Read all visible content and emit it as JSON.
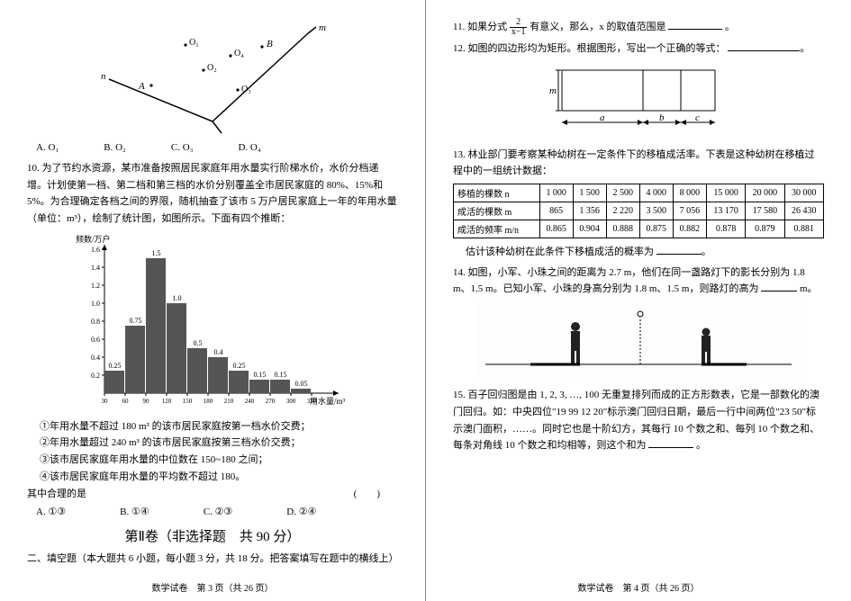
{
  "left": {
    "geom": {
      "labels": {
        "n": "n",
        "m": "m",
        "A": "A",
        "B": "B",
        "O1": "O₁",
        "O2": "O₂",
        "O3": "O₃",
        "O4": "O₄"
      },
      "line_color": "#000"
    },
    "q9_opts": {
      "A": "A. O₁",
      "B": "B. O₂",
      "C": "C. O₃",
      "D": "D. O₄"
    },
    "q10": {
      "num": "10.",
      "text1": "为了节约水资源，某市准备按照居民家庭年用水量实行阶梯水价，水价分档递增。计划使第一档、第二档和第三档的水价分别覆盖全市居民家庭的 80%、15%和 5%。为合理确定各档之间的界限，随机抽查了该市 5 万户居民家庭上一年的年用水量（单位：m³），绘制了统计图，如图所示。下面有四个推断："
    },
    "chart": {
      "ylabel": "频数/万户",
      "xlabel": "用水量/m³",
      "x_ticks": [
        "30",
        "60",
        "90",
        "120",
        "150",
        "180",
        "210",
        "240",
        "270",
        "300",
        "330"
      ],
      "y_ticks": [
        "0.2",
        "0.4",
        "0.6",
        "0.8",
        "1.0",
        "1.2",
        "1.4",
        "1.6"
      ],
      "bars": [
        {
          "x": 0,
          "h": 0.25,
          "label": "0.25"
        },
        {
          "x": 1,
          "h": 0.75,
          "label": "0.75"
        },
        {
          "x": 2,
          "h": 1.5,
          "label": "1.5"
        },
        {
          "x": 3,
          "h": 1.0,
          "label": "1.0"
        },
        {
          "x": 4,
          "h": 0.5,
          "label": "0.5"
        },
        {
          "x": 5,
          "h": 0.4,
          "label": "0.4"
        },
        {
          "x": 6,
          "h": 0.25,
          "label": "0.25"
        },
        {
          "x": 7,
          "h": 0.15,
          "label": "0.15"
        },
        {
          "x": 8,
          "h": 0.15,
          "label": "0.15"
        },
        {
          "x": 9,
          "h": 0.05,
          "label": "0.05"
        }
      ],
      "bar_color": "#555",
      "axis_color": "#000",
      "y_max": 1.6
    },
    "stmts": {
      "s1": "①年用水量不超过 180 m³ 的该市居民家庭按第一档水价交费；",
      "s2": "②年用水量超过 240 m³ 的该市居民家庭按第三档水价交费；",
      "s3": "③该市居民家庭年用水量的中位数在 150~180 之间；",
      "s4": "④该市居民家庭年用水量的平均数不超过 180。",
      "tail": "其中合理的是"
    },
    "q10_opts": {
      "A": "A. ①③",
      "B": "B. ①④",
      "C": "C. ②③",
      "D": "D. ②④"
    },
    "section2": "第Ⅱ卷（非选择题　共 90 分）",
    "fill_title": "二、填空题（本大题共 6 小题，每小题 3 分，共 18 分。把答案填写在题中的横线上）",
    "footer": "数学试卷　第 3 页（共 26 页）"
  },
  "right": {
    "q11": {
      "pre": "11. 如果分式 ",
      "num": "2",
      "den": "x−1",
      "post": " 有意义，那么，x 的取值范围是",
      "tail": "。"
    },
    "q12": "12. 如图的四边形均为矩形。根据图形，写出一个正确的等式：",
    "rect": {
      "m": "m",
      "a": "a",
      "b": "b",
      "c": "c"
    },
    "q13": {
      "text": "13. 林业部门要考察某种幼树在一定条件下的移植成活率。下表是这种幼树在移植过程中的一组统计数据：",
      "headers": [
        "移植的棵数 n",
        "成活的棵数 m",
        "成活的频率 m/n"
      ],
      "cols": [
        "1 000",
        "1 500",
        "2 500",
        "4 000",
        "8 000",
        "15 000",
        "20 000",
        "30 000"
      ],
      "row_m": [
        "865",
        "1 356",
        "2 220",
        "3 500",
        "7 056",
        "13 170",
        "17 580",
        "26 430"
      ],
      "row_f": [
        "0.865",
        "0.904",
        "0.888",
        "0.875",
        "0.882",
        "0.878",
        "0.879",
        "0.881"
      ],
      "tail": "估计该种幼树在此条件下移植成活的概率为"
    },
    "q14": {
      "t1": "14. 如图，小军、小珠之间的距离为 2.7 m，他们在同一盏路灯下的影长分别为 1.8 m、1.5 m。已知小军、小珠的身高分别为 1.8 m、1.5 m，则路灯的高为",
      "unit": "m。"
    },
    "q15": {
      "t1": "15. 百子回归图是由 1, 2, 3, …, 100 无重复排列而成的正方形数表，它是一部数化的澳门回归。如：中央四位\"19 99 12 20\"标示澳门回归日期，最后一行中间两位\"23 50\"标示澳门面积，……。同时它也是十阶幻方，其每行 10 个数之和、每列 10 个数之和、每条对角线 10 个数之和均相等，则这个和为",
      "tail": "。"
    },
    "footer": "数学试卷　第 4 页（共 26 页）"
  }
}
